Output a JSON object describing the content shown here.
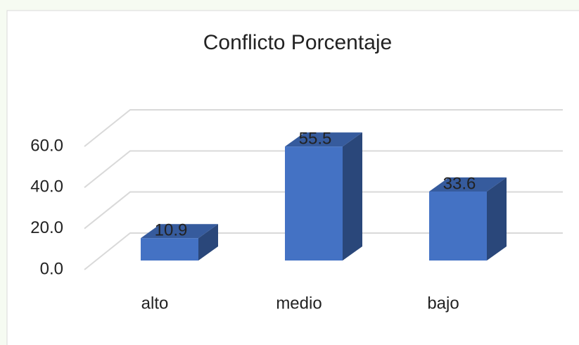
{
  "chart_data": {
    "type": "bar3d",
    "title": "Conflicto Porcentaje",
    "categories": [
      "alto",
      "medio",
      "bajo"
    ],
    "values": [
      10.9,
      55.5,
      33.6
    ],
    "color": "#4472c4",
    "ylim": [
      0,
      60
    ],
    "yticks": [
      {
        "value": 0,
        "label": "0.0"
      },
      {
        "value": 20,
        "label": "20.0"
      },
      {
        "value": 40,
        "label": "40.0"
      },
      {
        "value": 60,
        "label": "60.0"
      }
    ],
    "grid": true
  }
}
